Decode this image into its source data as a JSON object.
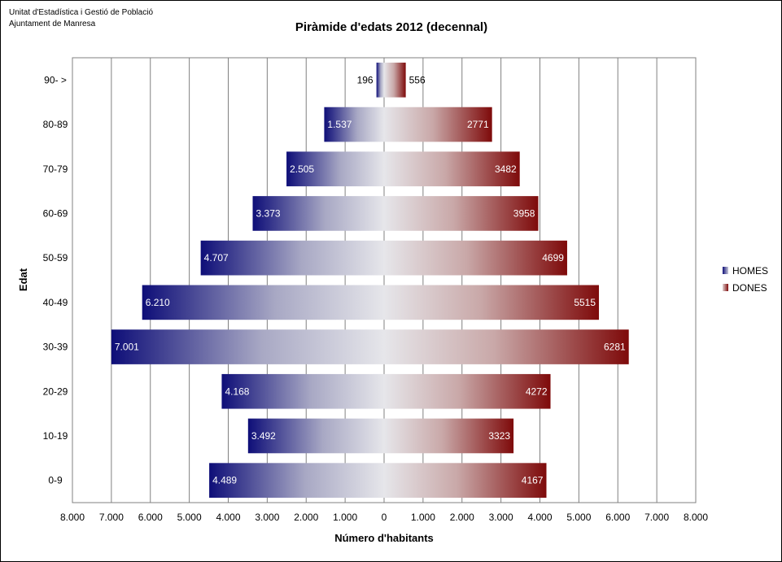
{
  "source_lines": [
    "Unitat d'Estadística i Gestió de Població",
    "Ajuntament de Manresa"
  ],
  "chart_data": {
    "type": "bar",
    "orientation": "horizontal",
    "layout": "population-pyramid",
    "title": "Piràmide d'edats 2012 (decennal)",
    "xlabel": "Número d'habitants",
    "ylabel": "Edat",
    "categories": [
      "0-9",
      "10-19",
      "20-29",
      "30-39",
      "40-49",
      "50-59",
      "60-69",
      "70-79",
      "80-89",
      "90- >"
    ],
    "series": [
      {
        "name": "HOMES",
        "side": "left",
        "color": "#1a1a7a",
        "values": [
          4489,
          3492,
          4168,
          7001,
          6210,
          4707,
          3373,
          2505,
          1537,
          196
        ],
        "labels": [
          "4.489",
          "3.492",
          "4.168",
          "7.001",
          "6.210",
          "4.707",
          "3.373",
          "2.505",
          "1.537",
          "196"
        ]
      },
      {
        "name": "DONES",
        "side": "right",
        "color": "#8b1a1a",
        "values": [
          4167,
          3323,
          4272,
          6281,
          5515,
          4699,
          3958,
          3482,
          2771,
          556
        ],
        "labels": [
          "4167",
          "3323",
          "4272",
          "6281",
          "5515",
          "4699",
          "3958",
          "3482",
          "2771",
          "556"
        ]
      }
    ],
    "xlim": [
      -8000,
      8000
    ],
    "xticks": [
      -8000,
      -7000,
      -6000,
      -5000,
      -4000,
      -3000,
      -2000,
      -1000,
      0,
      1000,
      2000,
      3000,
      4000,
      5000,
      6000,
      7000,
      8000
    ],
    "xtick_labels": [
      "8.000",
      "7.000",
      "6.000",
      "5.000",
      "4.000",
      "3.000",
      "2.000",
      "1.000",
      "0",
      "1.000",
      "2.000",
      "3.000",
      "4.000",
      "5.000",
      "6.000",
      "7.000",
      "8.000"
    ],
    "grid": "vertical",
    "legend": "right"
  }
}
